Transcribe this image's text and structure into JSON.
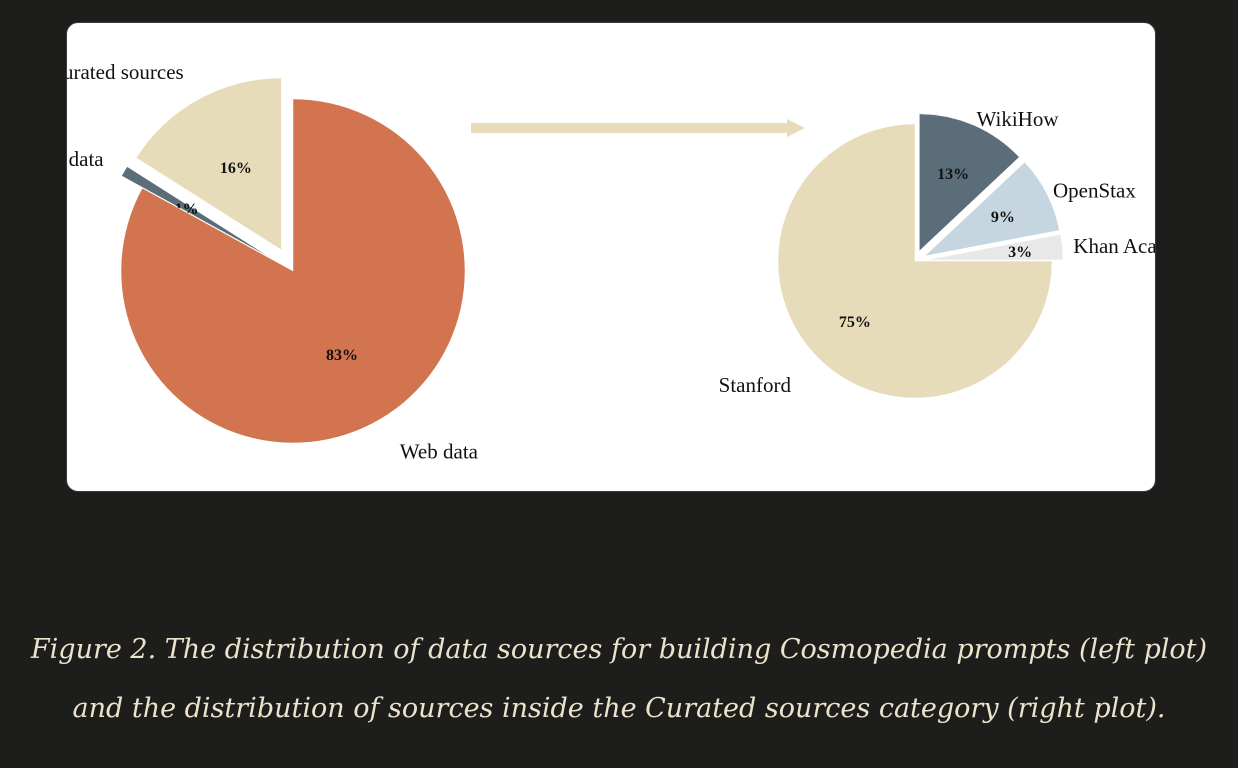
{
  "caption": {
    "line1": "Figure 2. The distribution of data sources for building Cosmopedia prompts (left plot)",
    "line2": "and the distribution of sources inside the Curated sources category (right plot)."
  },
  "colors": {
    "page_background": "#1d1d1b",
    "panel_background": "#ffffff",
    "caption_text": "#ece3cc"
  },
  "chart_data": [
    {
      "type": "pie",
      "title": "",
      "exploded": [
        "Instruction data",
        "Curated sources"
      ],
      "slices": [
        {
          "label": "Curated sources",
          "value": 16,
          "value_label": "16%",
          "color": "#e6dcb9"
        },
        {
          "label": "Instruction data",
          "value": 1,
          "value_label": "1%",
          "color": "#5b6d79"
        },
        {
          "label": "Web data",
          "value": 83,
          "value_label": "83%",
          "color": "#d1744f"
        }
      ]
    },
    {
      "type": "pie",
      "title": "",
      "exploded": [
        "Khan Academy",
        "OpenStax",
        "WikiHow"
      ],
      "slices": [
        {
          "label": "Khan Academy",
          "value": 3,
          "value_label": "3%",
          "color": "#e8e8e8"
        },
        {
          "label": "OpenStax",
          "value": 9,
          "value_label": "9%",
          "color": "#c5d6e0"
        },
        {
          "label": "WikiHow",
          "value": 13,
          "value_label": "13%",
          "color": "#5b6d79"
        },
        {
          "label": "Stanford",
          "value": 75,
          "value_label": "75%",
          "color": "#e6dcb9"
        }
      ]
    }
  ],
  "arrow": {
    "color": "#e6dcb9",
    "from": "Curated sources",
    "to": "Stanford / Khan Academy / OpenStax / WikiHow pie"
  }
}
